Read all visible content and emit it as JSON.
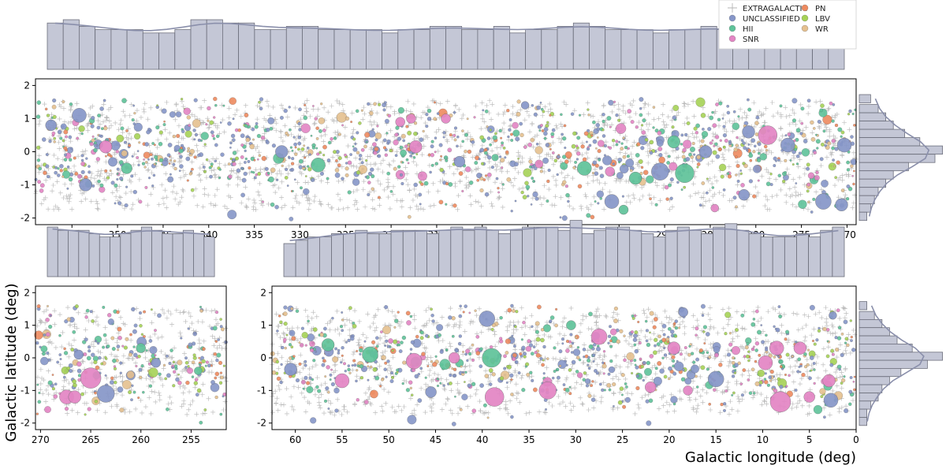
{
  "chart_data": [
    {
      "type": "scatter",
      "panel": "top",
      "xlim": [
        359,
        269
      ],
      "ylim": [
        -2.2,
        2.2
      ],
      "xticks": [
        355,
        350,
        345,
        340,
        335,
        330,
        325,
        320,
        315,
        310,
        305,
        300,
        295,
        290,
        285,
        280,
        275,
        270
      ],
      "yticks": [
        2,
        1,
        0,
        -1,
        -2
      ],
      "title": "",
      "xlabel": "",
      "ylabel": "",
      "top_histogram": [
        14,
        15,
        13,
        12,
        12,
        12,
        11,
        11,
        12,
        15,
        15,
        14,
        14,
        12,
        12,
        13,
        13,
        12,
        12,
        12,
        12,
        11,
        12,
        12,
        13,
        13,
        12,
        12,
        13,
        11,
        12,
        12,
        13,
        14,
        13,
        12,
        12,
        12,
        11,
        12,
        12,
        13,
        12,
        12,
        12,
        12,
        12,
        12,
        11,
        11
      ],
      "highlights": [
        {
          "cls": "SNR",
          "x": 278.7,
          "y": 0.5,
          "s": 12
        },
        {
          "cls": "HII",
          "x": 287.8,
          "y": -0.65,
          "s": 12
        },
        {
          "cls": "UNCLASSIFIED",
          "x": 290.5,
          "y": -0.6,
          "s": 11
        },
        {
          "cls": "UNCLASSIFIED",
          "x": 272.6,
          "y": -1.5,
          "s": 10
        },
        {
          "cls": "UNCLASSIFIED",
          "x": 270.3,
          "y": 0.2,
          "s": 9
        },
        {
          "cls": "UNCLASSIFIED",
          "x": 295.8,
          "y": -1.5,
          "s": 9
        },
        {
          "cls": "UNCLASSIFIED",
          "x": 276.5,
          "y": 0.2,
          "s": 9
        },
        {
          "cls": "UNCLASSIFIED",
          "x": 354.2,
          "y": 1.1,
          "s": 9
        },
        {
          "cls": "HII",
          "x": 298.8,
          "y": -0.5,
          "s": 9
        },
        {
          "cls": "HII",
          "x": 328.0,
          "y": -0.4,
          "s": 9
        },
        {
          "cls": "UNCLASSIFIED",
          "x": 285.5,
          "y": 0.0,
          "s": 8
        },
        {
          "cls": "SNR",
          "x": 351.3,
          "y": 0.15,
          "s": 8
        },
        {
          "cls": "UNCLASSIFIED",
          "x": 332.0,
          "y": 0.0,
          "s": 8
        },
        {
          "cls": "HII",
          "x": 293.2,
          "y": -0.8,
          "s": 8
        },
        {
          "cls": "UNCLASSIFIED",
          "x": 353.5,
          "y": -1.0,
          "s": 8
        },
        {
          "cls": "UNCLASSIFIED",
          "x": 280.8,
          "y": 0.6,
          "s": 8
        },
        {
          "cls": "SNR",
          "x": 317.3,
          "y": 0.15,
          "s": 8
        },
        {
          "cls": "HII",
          "x": 289.0,
          "y": 0.3,
          "s": 8
        },
        {
          "cls": "UNCLASSIFIED",
          "x": 312.5,
          "y": -0.3,
          "s": 7
        },
        {
          "cls": "UNCLASSIFIED",
          "x": 357.3,
          "y": 0.8,
          "s": 7
        },
        {
          "cls": "SNR",
          "x": 314.0,
          "y": 1.0,
          "s": 6
        },
        {
          "cls": "SNR",
          "x": 319.0,
          "y": 0.9,
          "s": 6
        },
        {
          "cls": "SNR",
          "x": 317.8,
          "y": 1.0,
          "s": 6
        },
        {
          "cls": "HII",
          "x": 349.0,
          "y": -0.5,
          "s": 7
        },
        {
          "cls": "SNR",
          "x": 296.0,
          "y": -0.6,
          "s": 6
        },
        {
          "cls": "SNR",
          "x": 284.5,
          "y": -1.7,
          "s": 5
        },
        {
          "cls": "HII",
          "x": 294.5,
          "y": -1.75,
          "s": 6
        },
        {
          "cls": "UNCLASSIFIED",
          "x": 281.3,
          "y": -1.3,
          "s": 7
        },
        {
          "cls": "UNCLASSIFIED",
          "x": 270.6,
          "y": -1.6,
          "s": 8
        },
        {
          "cls": "UNCLASSIFIED",
          "x": 305.3,
          "y": 1.4,
          "s": 5
        }
      ]
    },
    {
      "type": "scatter",
      "panel": "bottom-left",
      "xlim": [
        270.5,
        251.5
      ],
      "ylim": [
        -2.2,
        2.2
      ],
      "xticks": [
        270,
        265,
        260,
        255
      ],
      "yticks": [
        2,
        1,
        0,
        -1,
        -2
      ],
      "title": "",
      "xlabel": "",
      "ylabel": "Galactic latitude (deg)",
      "top_histogram": [
        15,
        14,
        14,
        14,
        13,
        12,
        12,
        13,
        14,
        15,
        14,
        13,
        13,
        14,
        13,
        12
      ],
      "highlights": [
        {
          "cls": "SNR",
          "x": 265.0,
          "y": -0.62,
          "s": 13
        },
        {
          "cls": "UNCLASSIFIED",
          "x": 263.5,
          "y": -1.1,
          "s": 11
        },
        {
          "cls": "SNR",
          "x": 267.4,
          "y": -1.2,
          "s": 9
        },
        {
          "cls": "SNR",
          "x": 266.6,
          "y": -1.2,
          "s": 8
        },
        {
          "cls": "UNCLASSIFIED",
          "x": 266.2,
          "y": 0.1,
          "s": 6
        },
        {
          "cls": "UNCLASSIFIED",
          "x": 258.5,
          "y": -0.15,
          "s": 6
        },
        {
          "cls": "HII",
          "x": 260.0,
          "y": 0.3,
          "s": 6
        },
        {
          "cls": "HII",
          "x": 254.3,
          "y": -0.4,
          "s": 5
        }
      ]
    },
    {
      "type": "scatter",
      "panel": "bottom-right",
      "xlim": [
        62.5,
        0
      ],
      "ylim": [
        -2.2,
        2.2
      ],
      "xticks": [
        60,
        55,
        50,
        45,
        40,
        35,
        30,
        25,
        20,
        15,
        10,
        5,
        0
      ],
      "yticks": [
        2,
        1,
        0,
        -1,
        -2
      ],
      "title": "",
      "xlabel": "Galactic longitude (deg)",
      "ylabel": "",
      "top_histogram": [
        10,
        11,
        12,
        12,
        13,
        13,
        14,
        13,
        13,
        14,
        14,
        14,
        13,
        14,
        15,
        14,
        15,
        14,
        13,
        14,
        15,
        15,
        15,
        14,
        17,
        13,
        14,
        15,
        15,
        14,
        13,
        12,
        14,
        15,
        14,
        13,
        15,
        16,
        14,
        13,
        12,
        12,
        12,
        13,
        12,
        14,
        15
      ],
      "highlights": [
        {
          "cls": "SNR",
          "x": 8.1,
          "y": -1.35,
          "s": 13
        },
        {
          "cls": "SNR",
          "x": 38.7,
          "y": -1.2,
          "s": 12
        },
        {
          "cls": "HII",
          "x": 39.0,
          "y": 0.0,
          "s": 12
        },
        {
          "cls": "SNR",
          "x": 33.0,
          "y": -1.0,
          "s": 11
        },
        {
          "cls": "SNR",
          "x": 47.3,
          "y": -0.1,
          "s": 10
        },
        {
          "cls": "HII",
          "x": 52.0,
          "y": 0.1,
          "s": 10
        },
        {
          "cls": "UNCLASSIFIED",
          "x": 39.5,
          "y": 1.2,
          "s": 10
        },
        {
          "cls": "SNR",
          "x": 27.5,
          "y": 0.65,
          "s": 10
        },
        {
          "cls": "SNR",
          "x": 8.5,
          "y": 0.3,
          "s": 9
        },
        {
          "cls": "UNCLASSIFIED",
          "x": 15.0,
          "y": -0.65,
          "s": 10
        },
        {
          "cls": "UNCLASSIFIED",
          "x": 2.7,
          "y": -1.3,
          "s": 9
        },
        {
          "cls": "SNR",
          "x": 55.0,
          "y": -0.7,
          "s": 9
        },
        {
          "cls": "SNR",
          "x": 9.7,
          "y": -0.15,
          "s": 9
        },
        {
          "cls": "SNR",
          "x": 6.0,
          "y": 0.3,
          "s": 8
        },
        {
          "cls": "SNR",
          "x": 2.9,
          "y": -0.7,
          "s": 8
        },
        {
          "cls": "UNCLASSIFIED",
          "x": 60.5,
          "y": -0.35,
          "s": 8
        },
        {
          "cls": "SNR",
          "x": 19.5,
          "y": 0.3,
          "s": 8
        },
        {
          "cls": "HII",
          "x": 56.5,
          "y": 0.4,
          "s": 8
        },
        {
          "cls": "SNR",
          "x": 5.0,
          "y": -1.2,
          "s": 7
        },
        {
          "cls": "SNR",
          "x": 22.0,
          "y": -0.9,
          "s": 7
        },
        {
          "cls": "SNR",
          "x": 43.0,
          "y": 0.0,
          "s": 7
        },
        {
          "cls": "UNCLASSIFIED",
          "x": 45.5,
          "y": -1.05,
          "s": 7
        },
        {
          "cls": "UNCLASSIFIED",
          "x": 18.5,
          "y": 1.4,
          "s": 6
        },
        {
          "cls": "SNR",
          "x": 18.0,
          "y": -1.0,
          "s": 6
        },
        {
          "cls": "UNCLASSIFIED",
          "x": 2.5,
          "y": 1.3,
          "s": 5
        },
        {
          "cls": "HII",
          "x": 30.5,
          "y": 1.0,
          "s": 6
        }
      ]
    },
    {
      "type": "bar",
      "panel": "right-histogram-top",
      "orientation": "horizontal",
      "bins_y_from_top": [
        1.6,
        1.3,
        1.05,
        0.8,
        0.55,
        0.3,
        0.05,
        -0.2,
        -0.45,
        -0.7,
        -0.95,
        -1.2,
        -1.45,
        -1.7,
        -1.95
      ],
      "values": [
        3,
        5,
        7,
        9,
        12,
        16,
        22,
        20,
        13,
        9,
        7,
        5,
        4,
        3,
        2
      ]
    },
    {
      "type": "bar",
      "panel": "right-histogram-bottom",
      "orientation": "horizontal",
      "bins_y_from_top": [
        1.6,
        1.3,
        1.05,
        0.8,
        0.55,
        0.3,
        0.05,
        -0.2,
        -0.45,
        -0.7,
        -0.95,
        -1.2,
        -1.45,
        -1.7,
        -1.95
      ],
      "values": [
        2,
        4,
        6,
        8,
        10,
        14,
        22,
        18,
        11,
        8,
        6,
        5,
        3,
        2,
        2
      ]
    }
  ],
  "legend": {
    "placement": "top-right",
    "entries": [
      {
        "label": "EXTRAGALACTIC",
        "marker": "plus",
        "color": "#b5b5b5"
      },
      {
        "label": "PN",
        "marker": "circle",
        "color": "#ee8a5f"
      },
      {
        "label": "UNCLASSIFIED",
        "marker": "circle",
        "color": "#8696c8"
      },
      {
        "label": "LBV",
        "marker": "circle",
        "color": "#a6d256"
      },
      {
        "label": "HII",
        "marker": "circle",
        "color": "#5fc39a"
      },
      {
        "label": "WR",
        "marker": "circle",
        "color": "#e5c08f"
      },
      {
        "label": "SNR",
        "marker": "circle",
        "color": "#e385c4"
      }
    ]
  },
  "colors": {
    "EXTRAGALACTIC": "#b5b5b5",
    "UNCLASSIFIED": "#8696c8",
    "HII": "#5fc39a",
    "SNR": "#e385c4",
    "PN": "#ee8a5f",
    "LBV": "#a6d256",
    "WR": "#e5c08f",
    "hist_fill": "#c4c7d6",
    "hist_edge": "#6d6f7c",
    "kde": "#8a8fab"
  }
}
